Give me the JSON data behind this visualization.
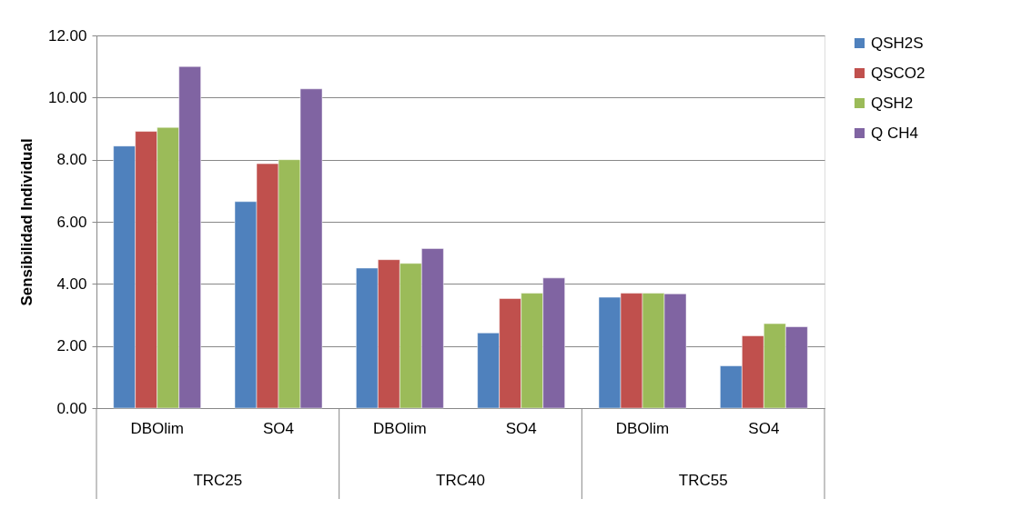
{
  "chart_data": {
    "type": "bar",
    "ylabel": "Sensibilidad Individual",
    "categories": [
      "DBOlim",
      "SO4",
      "DBOlim",
      "SO4",
      "DBOlim",
      "SO4"
    ],
    "annotations": [
      "TRC25",
      "TRC40",
      "TRC55"
    ],
    "series": [
      {
        "name": "QSH2S",
        "color": "#4f81bd",
        "values": [
          8.44,
          6.65,
          4.51,
          2.42,
          3.57,
          1.36
        ]
      },
      {
        "name": "QSCO2",
        "color": "#c0504d",
        "values": [
          8.91,
          7.87,
          4.78,
          3.53,
          3.7,
          2.33
        ]
      },
      {
        "name": "QSH2",
        "color": "#9bbb59",
        "values": [
          9.04,
          8.0,
          4.66,
          3.7,
          3.7,
          2.72
        ]
      },
      {
        "name": "Q CH4",
        "color": "#8064a2",
        "values": [
          11.0,
          10.28,
          5.14,
          4.19,
          3.68,
          2.62
        ]
      }
    ],
    "ylim": [
      0,
      12
    ],
    "yticks": [
      {
        "value": 0,
        "label": "0.00"
      },
      {
        "value": 2,
        "label": "2.00"
      },
      {
        "value": 4,
        "label": "4.00"
      },
      {
        "value": 6,
        "label": "6.00"
      },
      {
        "value": 8,
        "label": "8.00"
      },
      {
        "value": 10,
        "label": "10.00"
      },
      {
        "value": 12,
        "label": "12.00"
      }
    ],
    "grid": "y",
    "legend": "right"
  }
}
